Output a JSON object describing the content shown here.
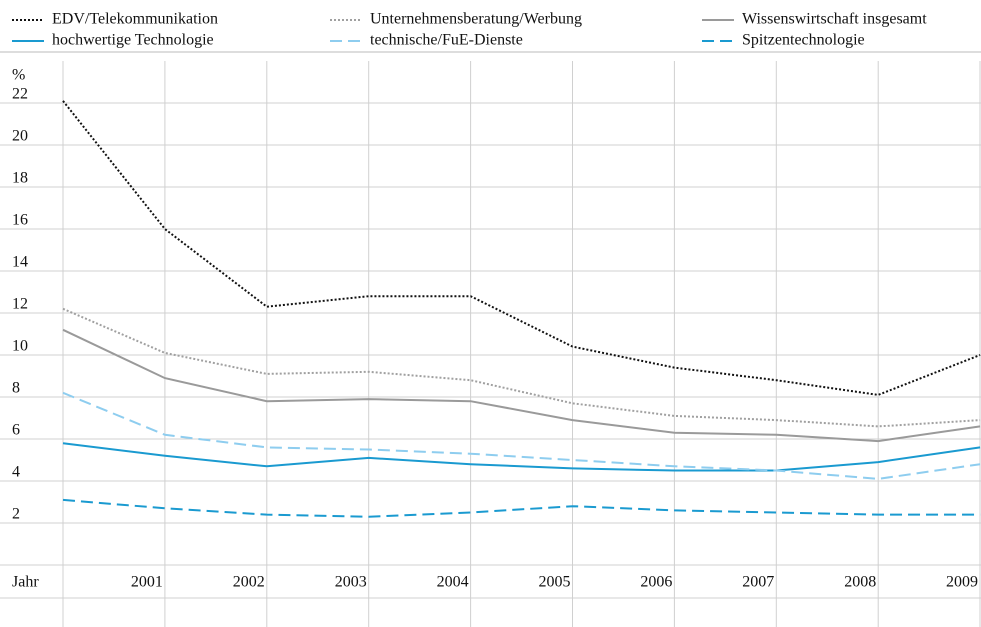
{
  "chart_data": {
    "type": "line",
    "x_label": "Jahr",
    "y_label": "%",
    "categories": [
      null,
      "2001",
      "2002",
      "2003",
      "2004",
      "2005",
      "2006",
      "2007",
      "2008",
      "2009"
    ],
    "ylim": [
      0,
      24
    ],
    "yticks": [
      2,
      4,
      6,
      8,
      10,
      12,
      14,
      16,
      18,
      20,
      22
    ],
    "grid": true,
    "series": [
      {
        "name": "EDV/Telekommunikation",
        "color": "#111111",
        "style": "dotted",
        "values": [
          22.1,
          16.0,
          12.3,
          12.8,
          12.8,
          10.4,
          9.4,
          8.8,
          8.1,
          10.0
        ]
      },
      {
        "name": "Unternehmensberatung/Werbung",
        "color": "#a0a0a0",
        "style": "dotted",
        "values": [
          12.2,
          10.1,
          9.1,
          9.2,
          8.8,
          7.7,
          7.1,
          6.9,
          6.6,
          6.9
        ]
      },
      {
        "name": "Wissenswirtschaft insgesamt",
        "color": "#9a9a9a",
        "style": "solid",
        "values": [
          11.2,
          8.9,
          7.8,
          7.9,
          7.8,
          6.9,
          6.3,
          6.2,
          5.9,
          6.6
        ]
      },
      {
        "name": "hochwertige Technologie",
        "color": "#1a9ad0",
        "style": "solid",
        "values": [
          5.8,
          5.2,
          4.7,
          5.1,
          4.8,
          4.6,
          4.5,
          4.5,
          4.9,
          5.6
        ]
      },
      {
        "name": "technische/FuE-Dienste",
        "color": "#8ecdef",
        "style": "dashed",
        "values": [
          8.2,
          6.2,
          5.6,
          5.5,
          5.3,
          5.0,
          4.7,
          4.5,
          4.1,
          4.8
        ]
      },
      {
        "name": "Spitzentechnologie",
        "color": "#1a9ad0",
        "style": "dashed",
        "values": [
          3.1,
          2.7,
          2.4,
          2.3,
          2.5,
          2.8,
          2.6,
          2.5,
          2.4,
          2.4
        ]
      }
    ]
  }
}
